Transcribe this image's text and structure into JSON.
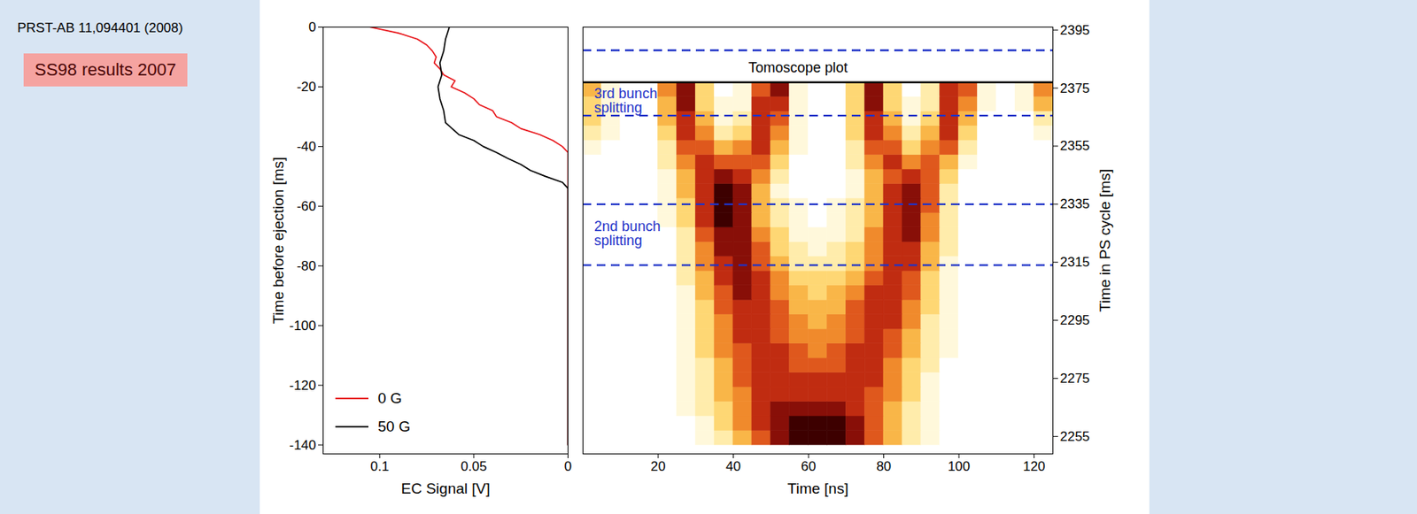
{
  "page": {
    "citation": "PRST-AB 11,094401 (2008)",
    "label": "SS98 results 2007"
  },
  "chart_data": [
    {
      "type": "line",
      "xlabel": "EC Signal [V]",
      "ylabel": "Time before ejection [ms]",
      "xlim": [
        0.13,
        0
      ],
      "xticks": [
        0.1,
        0.05,
        0
      ],
      "ylim": [
        -143,
        0
      ],
      "yticks": [
        0,
        -20,
        -40,
        -60,
        -80,
        -100,
        -120,
        -140
      ],
      "legend": "lower left",
      "series": [
        {
          "name": "0 G",
          "color": "#e8161b",
          "x": [
            0.105,
            0.09,
            0.08,
            0.075,
            0.072,
            0.07,
            0.071,
            0.068,
            0.066,
            0.06,
            0.062,
            0.055,
            0.05,
            0.047,
            0.04,
            0.038,
            0.03,
            0.025,
            0.015,
            0.008,
            0.003,
            0,
            0
          ],
          "y": [
            0,
            -2,
            -4,
            -6,
            -8,
            -10,
            -12,
            -14,
            -16,
            -18,
            -20,
            -22,
            -24,
            -26,
            -28,
            -30,
            -32,
            -34,
            -36,
            -38,
            -40,
            -42,
            -140
          ]
        },
        {
          "name": "50 G",
          "color": "#000000",
          "x": [
            0.063,
            0.065,
            0.066,
            0.068,
            0.067,
            0.069,
            0.068,
            0.066,
            0.065,
            0.058,
            0.05,
            0.045,
            0.038,
            0.032,
            0.025,
            0.02,
            0.012,
            0.003,
            0,
            0
          ],
          "y": [
            0,
            -4,
            -8,
            -12,
            -16,
            -20,
            -24,
            -28,
            -32,
            -36,
            -38,
            -40,
            -42,
            -44,
            -46,
            -48,
            -50,
            -52,
            -54,
            -140
          ]
        }
      ]
    },
    {
      "type": "heatmap",
      "xlabel": "Time [ns]",
      "ylabel": "Time in PS cycle [ms]",
      "xlim": [
        0,
        125
      ],
      "xticks": [
        20,
        40,
        60,
        80,
        100,
        120
      ],
      "ylim": [
        2249,
        2396
      ],
      "yticks": [
        2255,
        2275,
        2295,
        2315,
        2335,
        2355,
        2375,
        2395
      ],
      "x_bins": [
        0,
        5,
        10,
        15,
        20,
        25,
        30,
        35,
        40,
        45,
        50,
        55,
        60,
        65,
        70,
        75,
        80,
        85,
        90,
        95,
        100,
        105,
        110,
        115,
        120,
        125
      ],
      "y_bins": [
        2252,
        2257,
        2262,
        2267,
        2272,
        2277,
        2282,
        2287,
        2292,
        2297,
        2302,
        2307,
        2312,
        2317,
        2322,
        2327,
        2332,
        2337,
        2342,
        2347,
        2352,
        2357,
        2362,
        2367,
        2372,
        2377
      ],
      "zlim": [
        0,
        9
      ],
      "cells": [
        [
          0,
          0,
          0,
          0,
          0,
          0,
          1,
          2,
          4,
          6,
          8,
          9,
          9,
          9,
          8,
          6,
          4,
          2,
          1,
          0,
          0,
          0,
          0,
          0,
          0
        ],
        [
          0,
          0,
          0,
          0,
          0,
          0,
          1,
          3,
          5,
          7,
          8,
          9,
          9,
          9,
          8,
          6,
          4,
          2,
          1,
          0,
          0,
          0,
          0,
          0,
          0
        ],
        [
          0,
          0,
          0,
          0,
          0,
          1,
          2,
          3,
          5,
          7,
          8,
          8,
          8,
          8,
          7,
          6,
          4,
          2,
          1,
          0,
          0,
          0,
          0,
          0,
          0
        ],
        [
          0,
          0,
          0,
          0,
          0,
          1,
          2,
          4,
          5,
          7,
          7,
          7,
          7,
          7,
          7,
          6,
          5,
          3,
          1,
          0,
          0,
          0,
          0,
          0,
          0
        ],
        [
          0,
          0,
          0,
          0,
          0,
          1,
          2,
          4,
          6,
          7,
          7,
          7,
          7,
          7,
          7,
          7,
          5,
          3,
          1,
          0,
          0,
          0,
          0,
          0,
          0
        ],
        [
          0,
          0,
          0,
          0,
          0,
          1,
          2,
          4,
          6,
          7,
          7,
          6,
          6,
          6,
          7,
          7,
          5,
          3,
          2,
          0,
          0,
          0,
          0,
          0,
          0
        ],
        [
          0,
          0,
          0,
          0,
          0,
          1,
          3,
          5,
          6,
          7,
          7,
          6,
          5,
          6,
          7,
          7,
          6,
          4,
          2,
          1,
          0,
          0,
          0,
          0,
          0
        ],
        [
          0,
          0,
          0,
          0,
          0,
          1,
          3,
          5,
          7,
          7,
          6,
          5,
          5,
          5,
          6,
          7,
          6,
          4,
          2,
          1,
          0,
          0,
          0,
          0,
          0
        ],
        [
          0,
          0,
          0,
          0,
          0,
          1,
          3,
          5,
          7,
          7,
          6,
          5,
          4,
          5,
          6,
          7,
          7,
          5,
          2,
          1,
          0,
          0,
          0,
          0,
          0
        ],
        [
          0,
          0,
          0,
          0,
          0,
          1,
          3,
          6,
          7,
          7,
          6,
          4,
          4,
          4,
          6,
          7,
          7,
          5,
          3,
          1,
          0,
          0,
          0,
          0,
          0
        ],
        [
          0,
          0,
          0,
          0,
          0,
          1,
          4,
          6,
          8,
          7,
          5,
          4,
          3,
          4,
          5,
          7,
          7,
          6,
          3,
          1,
          0,
          0,
          0,
          0,
          0
        ],
        [
          0,
          0,
          0,
          0,
          0,
          2,
          4,
          7,
          8,
          7,
          5,
          3,
          3,
          3,
          4,
          6,
          7,
          6,
          3,
          1,
          0,
          0,
          0,
          0,
          0
        ],
        [
          0,
          0,
          0,
          0,
          0,
          2,
          5,
          7,
          8,
          6,
          4,
          2,
          2,
          2,
          3,
          5,
          7,
          7,
          4,
          1,
          0,
          0,
          0,
          0,
          0
        ],
        [
          0,
          0,
          0,
          0,
          0,
          2,
          5,
          8,
          8,
          6,
          3,
          2,
          1,
          2,
          3,
          5,
          7,
          7,
          4,
          2,
          0,
          0,
          0,
          0,
          0
        ],
        [
          0,
          0,
          0,
          0,
          0,
          2,
          6,
          8,
          8,
          5,
          3,
          1,
          1,
          1,
          2,
          5,
          7,
          8,
          5,
          2,
          0,
          0,
          0,
          0,
          0
        ],
        [
          0,
          0,
          0,
          0,
          1,
          3,
          7,
          9,
          8,
          4,
          2,
          1,
          0,
          1,
          2,
          4,
          7,
          8,
          5,
          2,
          0,
          0,
          0,
          0,
          0
        ],
        [
          0,
          0,
          0,
          0,
          1,
          3,
          7,
          9,
          8,
          4,
          2,
          1,
          0,
          1,
          2,
          4,
          7,
          8,
          6,
          2,
          0,
          0,
          0,
          0,
          0
        ],
        [
          0,
          0,
          0,
          0,
          1,
          4,
          7,
          9,
          8,
          4,
          1,
          0,
          0,
          0,
          1,
          4,
          7,
          8,
          6,
          2,
          0,
          0,
          0,
          0,
          0
        ],
        [
          0,
          0,
          0,
          0,
          1,
          4,
          7,
          8,
          7,
          5,
          2,
          0,
          0,
          0,
          1,
          4,
          6,
          7,
          6,
          3,
          0,
          0,
          0,
          0,
          0
        ],
        [
          0,
          0,
          0,
          0,
          2,
          5,
          7,
          6,
          6,
          6,
          3,
          0,
          0,
          0,
          2,
          5,
          7,
          5,
          6,
          4,
          1,
          0,
          0,
          0,
          0
        ],
        [
          1,
          0,
          0,
          0,
          2,
          6,
          6,
          4,
          5,
          7,
          4,
          1,
          0,
          0,
          2,
          6,
          6,
          3,
          5,
          6,
          2,
          0,
          0,
          0,
          0
        ],
        [
          2,
          1,
          0,
          0,
          3,
          7,
          5,
          2,
          3,
          7,
          5,
          1,
          0,
          0,
          3,
          7,
          5,
          2,
          4,
          7,
          3,
          0,
          0,
          0,
          1
        ],
        [
          3,
          1,
          0,
          0,
          4,
          7,
          4,
          1,
          2,
          7,
          6,
          1,
          0,
          0,
          3,
          7,
          4,
          1,
          3,
          7,
          4,
          0,
          0,
          0,
          2
        ],
        [
          3,
          1,
          0,
          0,
          4,
          8,
          3,
          1,
          1,
          7,
          7,
          1,
          0,
          0,
          3,
          8,
          3,
          1,
          2,
          7,
          5,
          1,
          0,
          1,
          4
        ],
        [
          4,
          1,
          0,
          0,
          5,
          8,
          3,
          0,
          1,
          6,
          8,
          1,
          0,
          0,
          3,
          8,
          3,
          0,
          2,
          7,
          6,
          1,
          0,
          1,
          5
        ]
      ],
      "tomoscope_top": 2377,
      "dashed_lines": [
        2388,
        2365.5,
        2335,
        2314
      ],
      "annotations": [
        {
          "text": "Tomoscope plot",
          "x": 44,
          "y": 2382,
          "color": "#000000"
        },
        {
          "text": "3rd bunch splitting",
          "x": 3,
          "y": 2370.5,
          "color": "#1f33c8"
        },
        {
          "text": "2nd bunch splitting",
          "x": 3,
          "y": 2325,
          "color": "#1f33c8"
        }
      ]
    }
  ]
}
